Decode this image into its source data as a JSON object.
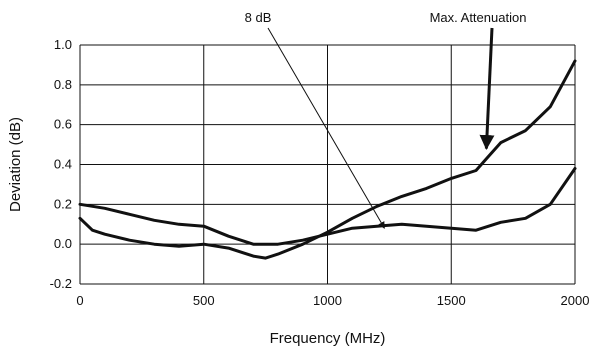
{
  "chart_data": {
    "type": "line",
    "title": "",
    "xlabel": "Frequency (MHz)",
    "ylabel": "Deviation (dB)",
    "xlim": [
      0,
      2000
    ],
    "ylim": [
      -0.2,
      1.0
    ],
    "x_ticks": [
      0,
      500,
      1000,
      1500,
      2000
    ],
    "x_tick_labels": [
      "0",
      "500",
      "1000",
      "1500",
      "2000"
    ],
    "y_ticks": [
      -0.2,
      0.0,
      0.2,
      0.4,
      0.6,
      0.8,
      1.0
    ],
    "y_tick_labels": [
      "-0.2",
      "0.0",
      "0.2",
      "0.4",
      "0.6",
      "0.8",
      "1.0"
    ],
    "grid": true,
    "series": [
      {
        "x": [
          0,
          100,
          200,
          300,
          400,
          500,
          600,
          700,
          800,
          900,
          1000,
          1100,
          1200,
          1300,
          1400,
          1500,
          1600,
          1700,
          1800,
          1900,
          2000
        ],
        "y": [
          0.2,
          0.18,
          0.15,
          0.12,
          0.1,
          0.09,
          0.04,
          0.0,
          0.0,
          0.02,
          0.05,
          0.08,
          0.09,
          0.1,
          0.09,
          0.08,
          0.07,
          0.11,
          0.13,
          0.2,
          0.38
        ]
      },
      {
        "x": [
          0,
          50,
          100,
          200,
          300,
          400,
          500,
          600,
          700,
          750,
          800,
          900,
          1000,
          1100,
          1200,
          1300,
          1400,
          1500,
          1600,
          1650,
          1700,
          1800,
          1900,
          2000
        ],
        "y": [
          0.13,
          0.07,
          0.05,
          0.02,
          0.0,
          -0.01,
          0.0,
          -0.02,
          -0.06,
          -0.07,
          -0.05,
          0.0,
          0.06,
          0.13,
          0.19,
          0.24,
          0.28,
          0.33,
          0.37,
          0.44,
          0.51,
          0.57,
          0.69,
          0.92
        ]
      }
    ],
    "annotations": [
      {
        "text": "8 dB",
        "arrow_to": [
          1230,
          0.06
        ]
      },
      {
        "text": "Max. Attenuation",
        "arrow_to": [
          1650,
          0.44
        ]
      }
    ]
  }
}
